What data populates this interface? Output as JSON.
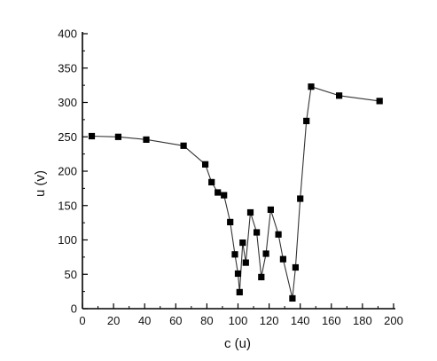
{
  "chart_data": {
    "type": "line",
    "title": "",
    "xlabel": "c (u)",
    "ylabel": "u (v)",
    "xlim": [
      0,
      200
    ],
    "ylim": [
      0,
      400
    ],
    "xticks": [
      0,
      20,
      40,
      60,
      80,
      100,
      120,
      140,
      160,
      180,
      200
    ],
    "yticks": [
      0,
      50,
      100,
      150,
      200,
      250,
      300,
      350,
      400
    ],
    "grid": false,
    "legend": "none",
    "marker": "square",
    "colors": {
      "line": "#333333",
      "marker": "#000000",
      "axis": "#000000"
    },
    "series": [
      {
        "x": [
          6,
          23,
          41,
          65,
          79,
          83,
          87,
          91,
          95,
          98,
          100,
          101,
          103,
          105,
          108,
          112,
          115,
          118,
          121,
          126,
          129,
          135,
          137,
          140,
          144,
          147,
          165,
          191
        ],
        "y": [
          251,
          250,
          246,
          237,
          210,
          184,
          169,
          165,
          126,
          79,
          51,
          24,
          96,
          67,
          140,
          111,
          46,
          80,
          144,
          108,
          72,
          15,
          60,
          160,
          273,
          323,
          310,
          302
        ]
      }
    ]
  }
}
